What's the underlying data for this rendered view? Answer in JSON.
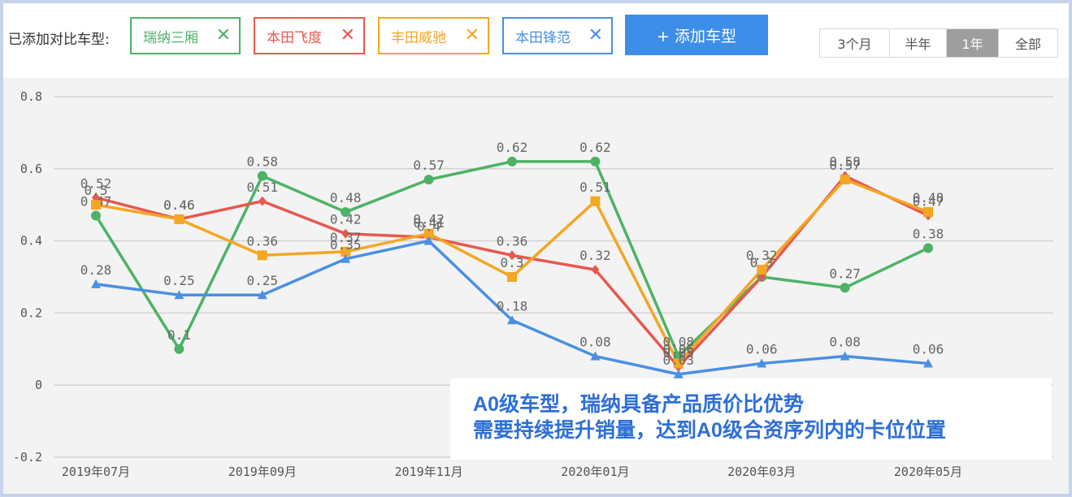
{
  "toolbar": {
    "label": "已添加对比车型:",
    "chips": [
      {
        "name": "瑞纳三厢",
        "color": "#4cb366"
      },
      {
        "name": "本田飞度",
        "color": "#e8584f"
      },
      {
        "name": "丰田威驰",
        "color": "#f5a623"
      },
      {
        "name": "本田锋范",
        "color": "#4a90e2"
      }
    ],
    "remove_glyph": "✕",
    "add_button": "+ 添加车型",
    "ranges": [
      "3个月",
      "半年",
      "1年",
      "全部"
    ],
    "active_range": "1年"
  },
  "callout": {
    "line1": "A0级车型，瑞纳具备产品质价比优势",
    "line2": "需要持续提升销量，达到A0级合资序列内的卡位位置"
  },
  "chart_data": {
    "type": "line",
    "x": [
      "2019年07月",
      "2019年08月",
      "2019年09月",
      "2019年10月",
      "2019年11月",
      "2019年12月",
      "2020年01月",
      "2020年02月",
      "2020年03月",
      "2020年04月",
      "2020年05月"
    ],
    "x_tick_labels": [
      "2019年07月",
      "",
      "2019年09月",
      "",
      "2019年11月",
      "",
      "2020年01月",
      "",
      "2020年03月",
      "",
      "2020年05月"
    ],
    "ylim": [
      -0.2,
      0.8
    ],
    "yticks": [
      "-0.2",
      "0",
      "0.2",
      "0.4",
      "0.6",
      "0.8"
    ],
    "grid": true,
    "series": [
      {
        "name": "瑞纳三厢",
        "color": "#4cb366",
        "marker": "circle",
        "values": [
          0.47,
          0.1,
          0.58,
          0.48,
          0.57,
          0.62,
          0.62,
          0.08,
          0.3,
          0.27,
          0.38
        ]
      },
      {
        "name": "本田飞度",
        "color": "#e8584f",
        "marker": "diamond",
        "values": [
          0.52,
          0.46,
          0.51,
          0.42,
          0.41,
          0.36,
          0.32,
          0.05,
          0.3,
          0.58,
          0.47
        ]
      },
      {
        "name": "丰田威驰",
        "color": "#f5a623",
        "marker": "square",
        "values": [
          0.5,
          0.46,
          0.36,
          0.37,
          0.42,
          0.3,
          0.51,
          0.06,
          0.32,
          0.57,
          0.48
        ]
      },
      {
        "name": "本田锋范",
        "color": "#4a90e2",
        "marker": "triangle",
        "values": [
          0.28,
          0.25,
          0.25,
          0.35,
          0.4,
          0.18,
          0.08,
          0.03,
          0.06,
          0.08,
          0.06
        ]
      }
    ]
  }
}
